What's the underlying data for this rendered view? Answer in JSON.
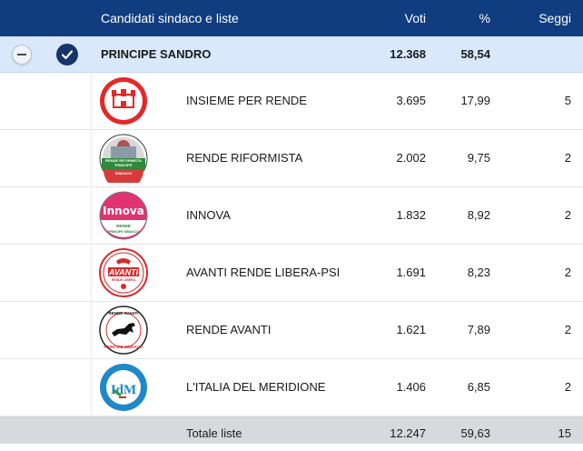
{
  "header": {
    "candidates_label": "Candidati sindaco e liste",
    "votes_label": "Voti",
    "percent_label": "%",
    "seats_label": "Seggi"
  },
  "candidate": {
    "name": "PRINCIPE SANDRO",
    "votes": "12.368",
    "percent": "58,54"
  },
  "lists": [
    {
      "name": "INSIEME PER RENDE",
      "votes": "3.695",
      "percent": "17,99",
      "seats": "5",
      "logo_icon": "insieme-per-rende-logo-icon"
    },
    {
      "name": "RENDE RIFORMISTA",
      "votes": "2.002",
      "percent": "9,75",
      "seats": "2",
      "logo_icon": "rende-riformista-logo-icon",
      "logo_text": [
        "RENDE RIFORMISTA",
        "PRINCIPE",
        "SINDACO"
      ]
    },
    {
      "name": "INNOVA",
      "votes": "1.832",
      "percent": "8,92",
      "seats": "2",
      "logo_icon": "innova-logo-icon",
      "logo_text": [
        "Innova",
        "RENDE",
        "PRINCIPE SINDACO"
      ]
    },
    {
      "name": "AVANTI RENDE LIBERA-PSI",
      "votes": "1.691",
      "percent": "8,23",
      "seats": "2",
      "logo_icon": "avanti-rende-libera-psi-logo-icon",
      "logo_text": [
        "AVANTI",
        "RENDE LIBERA"
      ]
    },
    {
      "name": "RENDE AVANTI",
      "votes": "1.621",
      "percent": "7,89",
      "seats": "2",
      "logo_icon": "rende-avanti-logo-icon",
      "logo_text": [
        "RENDE AVANTI",
        "PRINCIPE SINDACO"
      ]
    },
    {
      "name": "L'ITALIA DEL MERIDIONE",
      "votes": "1.406",
      "percent": "6,85",
      "seats": "2",
      "logo_icon": "italia-del-meridione-logo-icon",
      "logo_text": [
        "IdM"
      ]
    }
  ],
  "total": {
    "label": "Totale liste",
    "votes": "12.247",
    "percent": "59,63",
    "seats": "15"
  },
  "colors": {
    "header_bg": "#0f3d80",
    "candidate_row_bg": "#d9e8fb",
    "total_row_bg": "#d7d9dc"
  }
}
